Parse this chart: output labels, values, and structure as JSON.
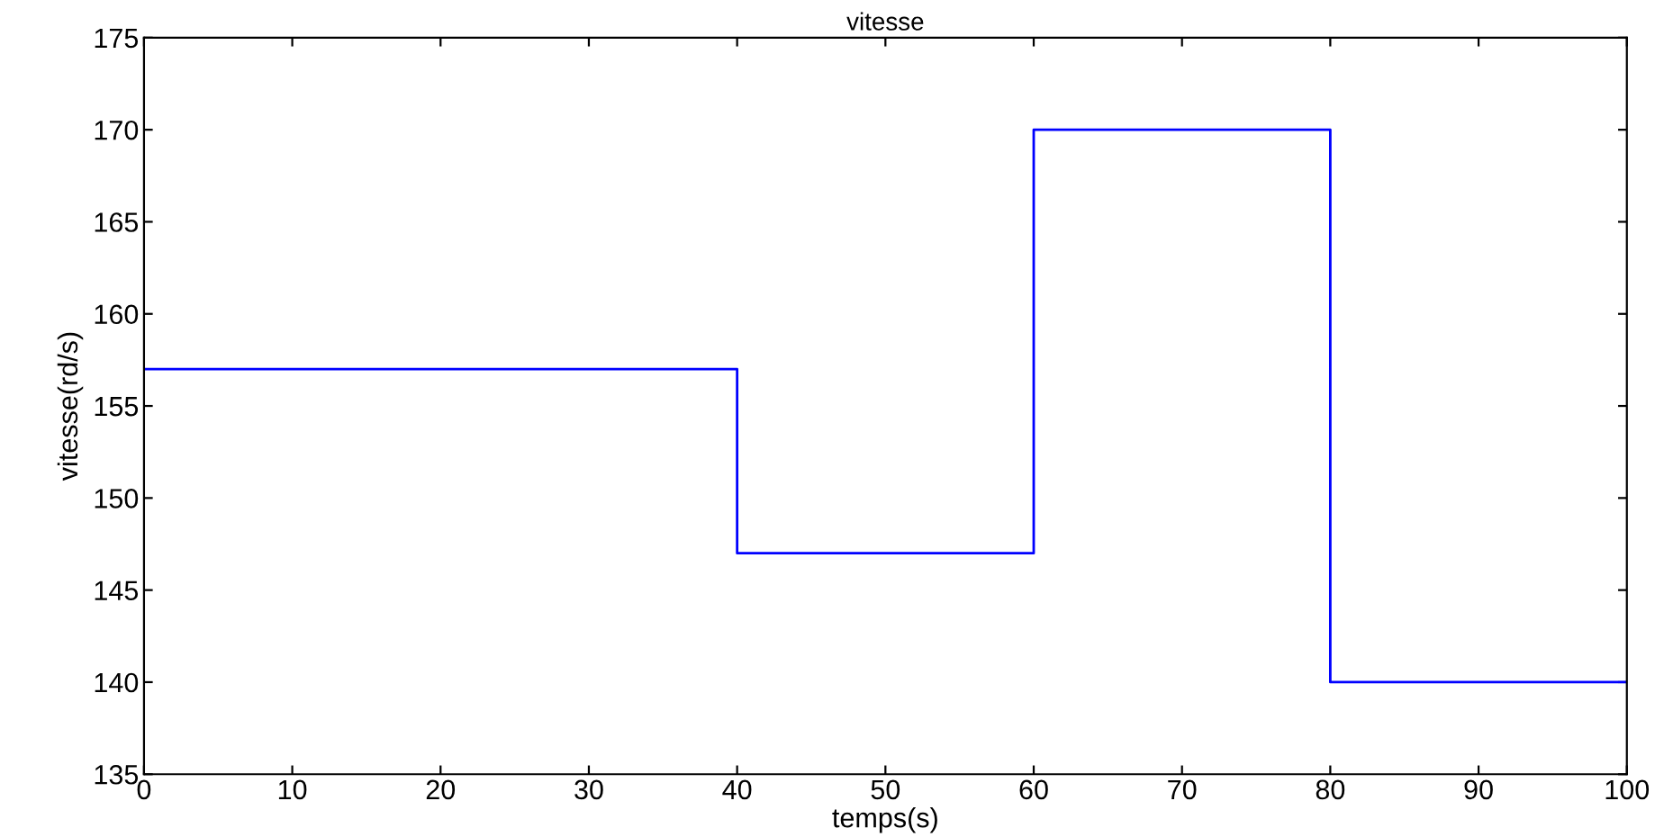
{
  "chart_data": {
    "type": "step",
    "title": "vitesse",
    "xlabel": "temps(s)",
    "ylabel": "vitesse(rd/s)",
    "x": [
      0,
      40,
      60,
      80,
      100
    ],
    "series": [
      {
        "color": "#0000ff",
        "values": [
          157,
          147,
          170,
          140,
          140
        ]
      }
    ],
    "xlim": [
      0,
      100
    ],
    "xticks": [
      0,
      10,
      20,
      30,
      40,
      50,
      60,
      70,
      80,
      90,
      100
    ],
    "ylim": [
      135,
      175
    ],
    "yticks": [
      135,
      140,
      145,
      150,
      155,
      160,
      165,
      170,
      175
    ],
    "grid": false
  }
}
